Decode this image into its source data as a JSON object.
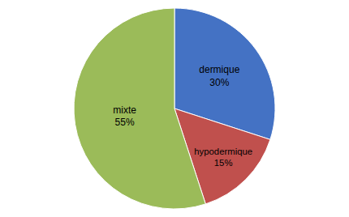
{
  "chart_data": {
    "type": "pie",
    "categories": [
      "dermique",
      "hypodermique",
      "mixte"
    ],
    "values": [
      30,
      15,
      55
    ],
    "value_labels": [
      "30%",
      "15%",
      "55%"
    ],
    "data_labels": true,
    "colors": [
      "#4472C4",
      "#C0504D",
      "#9BBB59"
    ]
  }
}
